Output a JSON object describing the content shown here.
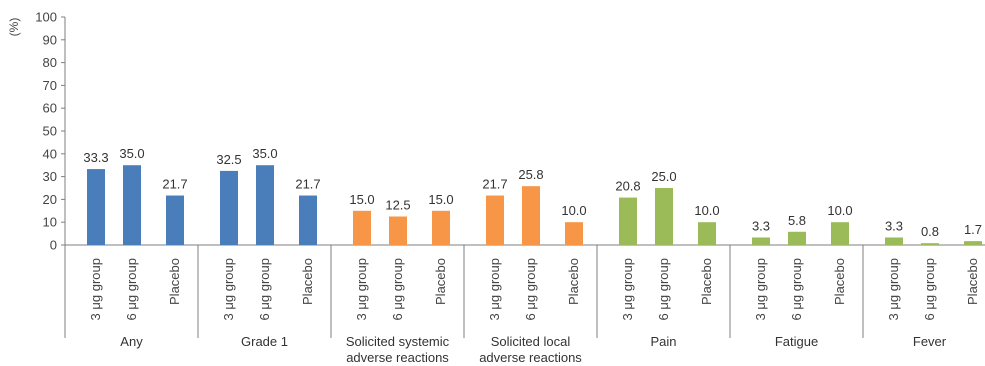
{
  "chart_data": {
    "type": "bar",
    "ylabel": "(%)",
    "ylim": [
      0,
      100
    ],
    "yticks": [
      0,
      10,
      20,
      30,
      40,
      50,
      60,
      70,
      80,
      90,
      100
    ],
    "grid": false,
    "legend": "none",
    "groups": [
      {
        "name": "Any",
        "name_lines": [
          "Any"
        ],
        "color": "#4A7EBB",
        "categories": [
          "3 μg group",
          "6 μg group",
          "Placebo"
        ],
        "values": [
          33.3,
          35.0,
          21.7
        ],
        "value_labels": [
          "33.3",
          "35.0",
          "21.7"
        ]
      },
      {
        "name": "Grade 1",
        "name_lines": [
          "Grade 1"
        ],
        "color": "#4A7EBB",
        "categories": [
          "3 μg group",
          "6 μg group",
          "Placebo"
        ],
        "values": [
          32.5,
          35.0,
          21.7
        ],
        "value_labels": [
          "32.5",
          "35.0",
          "21.7"
        ]
      },
      {
        "name": "Solicited systemic adverse reactions",
        "name_lines": [
          "Solicited systemic",
          "adverse reactions"
        ],
        "color": "#F79646",
        "categories": [
          "3 μg group",
          "6 μg group",
          "Placebo"
        ],
        "values": [
          15.0,
          12.5,
          15.0
        ],
        "value_labels": [
          "15.0",
          "12.5",
          "15.0"
        ]
      },
      {
        "name": "Solicited local adverse reactions",
        "name_lines": [
          "Solicited local",
          "adverse reactions"
        ],
        "color": "#F79646",
        "categories": [
          "3 μg group",
          "6 μg group",
          "Placebo"
        ],
        "values": [
          21.7,
          25.8,
          10.0
        ],
        "value_labels": [
          "21.7",
          "25.8",
          "10.0"
        ]
      },
      {
        "name": "Pain",
        "name_lines": [
          "Pain"
        ],
        "color": "#9BBB59",
        "categories": [
          "3 μg group",
          "6 μg group",
          "Placebo"
        ],
        "values": [
          20.8,
          25.0,
          10.0
        ],
        "value_labels": [
          "20.8",
          "25.0",
          "10.0"
        ]
      },
      {
        "name": "Fatigue",
        "name_lines": [
          "Fatigue"
        ],
        "color": "#9BBB59",
        "categories": [
          "3 μg group",
          "6 μg group",
          "Placebo"
        ],
        "values": [
          3.3,
          5.8,
          10.0
        ],
        "value_labels": [
          "3.3",
          "5.8",
          "10.0"
        ]
      },
      {
        "name": "Fever",
        "name_lines": [
          "Fever"
        ],
        "color": "#9BBB59",
        "categories": [
          "3 μg group",
          "6 μg group",
          "Placebo"
        ],
        "values": [
          3.3,
          0.8,
          1.7
        ],
        "value_labels": [
          "3.3",
          "0.8",
          "1.7"
        ]
      }
    ]
  }
}
